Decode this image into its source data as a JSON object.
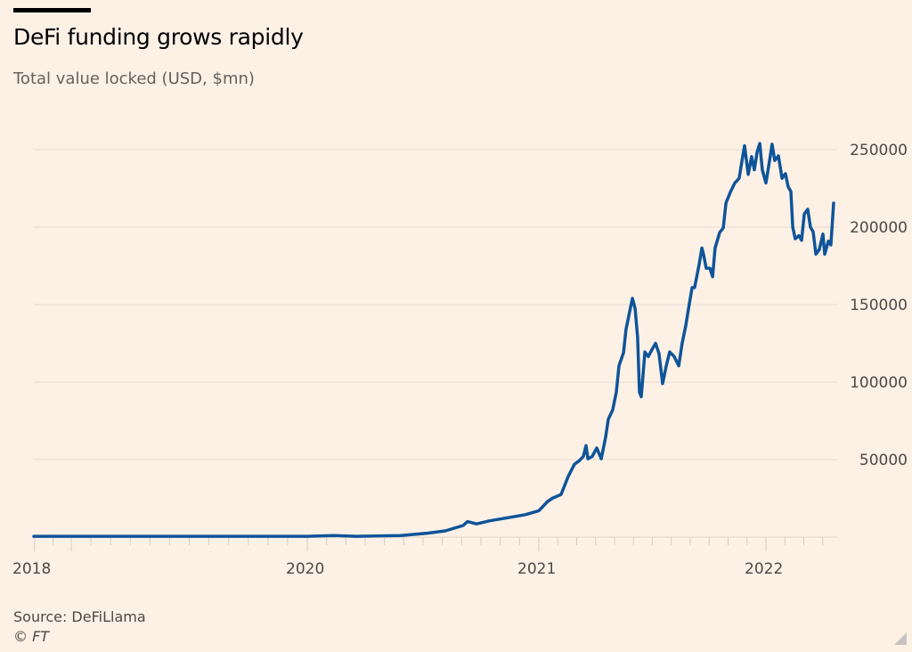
{
  "header": {
    "title": "DeFi funding grows rapidly",
    "subtitle": "Total value locked (USD, $mn)"
  },
  "footer": {
    "source": "Source: DeFiLlama",
    "credit": "© FT"
  },
  "colors": {
    "background": "#fdf1e6",
    "line": "#0f5499",
    "grid": "#e6dcd3"
  },
  "chart_data": {
    "type": "line",
    "title": "DeFi funding grows rapidly",
    "subtitle": "Total value locked (USD, $mn)",
    "xlabel": "",
    "ylabel": "Total value locked (USD, $mn)",
    "ylim": [
      0,
      250000
    ],
    "yticks": [
      50000,
      100000,
      150000,
      200000,
      250000
    ],
    "ytick_labels": [
      "50000",
      "100000",
      "150000",
      "200000",
      "250000"
    ],
    "xticks": [
      {
        "label": "2018",
        "year": 2018.83
      },
      {
        "label": "2020",
        "year": 2020.0
      },
      {
        "label": "2021",
        "year": 2021.0
      },
      {
        "label": "2022",
        "year": 2022.0
      }
    ],
    "xlim": [
      2018.83,
      2022.3
    ],
    "grid": true,
    "y_axis_side": "right",
    "legend": "none",
    "series": [
      {
        "name": "Total value locked",
        "x": [
          2018.83,
          2019.0,
          2019.45,
          2020.0,
          2020.115,
          2020.212,
          2020.404,
          2020.519,
          2020.596,
          2020.673,
          2020.692,
          2020.731,
          2020.788,
          2020.865,
          2020.942,
          2021.0,
          2021.039,
          2021.059,
          2021.098,
          2021.129,
          2021.157,
          2021.176,
          2021.196,
          2021.208,
          2021.216,
          2021.235,
          2021.255,
          2021.275,
          2021.294,
          2021.306,
          2021.325,
          2021.341,
          2021.353,
          2021.373,
          2021.384,
          2021.4,
          2021.412,
          2021.424,
          2021.435,
          2021.443,
          2021.451,
          2021.467,
          2021.482,
          2021.498,
          2021.514,
          2021.529,
          2021.545,
          2021.561,
          2021.576,
          2021.596,
          2021.616,
          2021.631,
          2021.647,
          2021.663,
          2021.675,
          2021.686,
          2021.706,
          2021.718,
          2021.725,
          2021.737,
          2021.753,
          2021.765,
          2021.776,
          2021.796,
          2021.812,
          2021.824,
          2021.843,
          2021.863,
          2021.882,
          2021.894,
          2021.906,
          2021.922,
          2021.937,
          2021.949,
          2021.961,
          2021.973,
          2021.984,
          2022.0,
          2022.016,
          2022.027,
          2022.039,
          2022.055,
          2022.071,
          2022.086,
          2022.098,
          2022.11,
          2022.118,
          2022.129,
          2022.145,
          2022.157,
          2022.169,
          2022.184,
          2022.196,
          2022.208,
          2022.22,
          2022.235,
          2022.251,
          2022.259,
          2022.275,
          2022.286,
          2022.298
        ],
        "values": [
          500,
          500,
          500,
          500,
          1000,
          500,
          1000,
          2500,
          4000,
          7500,
          10000,
          8500,
          10500,
          12500,
          14500,
          17000,
          23000,
          25000,
          27500,
          39000,
          47000,
          49000,
          52000,
          59000,
          50500,
          52000,
          57500,
          50500,
          64500,
          76000,
          82000,
          93500,
          110500,
          119000,
          134000,
          145500,
          154000,
          147500,
          129000,
          93500,
          90500,
          119500,
          116500,
          121000,
          125000,
          118500,
          99000,
          110500,
          119500,
          116500,
          110500,
          125000,
          136500,
          151000,
          161000,
          161000,
          176000,
          186500,
          182500,
          173500,
          173500,
          168000,
          186500,
          196500,
          199500,
          215500,
          222500,
          228500,
          231500,
          242500,
          252500,
          234000,
          245500,
          237000,
          248500,
          254000,
          237000,
          228500,
          243000,
          253500,
          243000,
          246000,
          231500,
          234500,
          226000,
          223000,
          200000,
          192500,
          194500,
          191500,
          208500,
          211500,
          200000,
          197000,
          182500,
          185500,
          195500,
          182500,
          191000,
          188500,
          215500
        ]
      }
    ]
  }
}
